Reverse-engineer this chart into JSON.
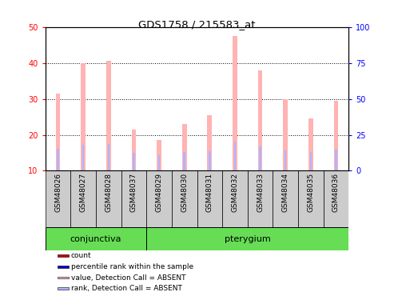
{
  "title": "GDS1758 / 215583_at",
  "samples": [
    "GSM48026",
    "GSM48027",
    "GSM48028",
    "GSM48037",
    "GSM48029",
    "GSM48030",
    "GSM48031",
    "GSM48032",
    "GSM48033",
    "GSM48034",
    "GSM48035",
    "GSM48036"
  ],
  "groups": [
    "conjunctiva",
    "conjunctiva",
    "conjunctiva",
    "conjunctiva",
    "pterygium",
    "pterygium",
    "pterygium",
    "pterygium",
    "pterygium",
    "pterygium",
    "pterygium",
    "pterygium"
  ],
  "value_absent": [
    31.5,
    40.0,
    40.5,
    21.5,
    18.5,
    23.0,
    25.5,
    47.5,
    38.0,
    30.0,
    24.5,
    29.5
  ],
  "rank_absent": [
    15.5,
    18.0,
    18.5,
    12.5,
    11.0,
    13.0,
    13.5,
    20.5,
    17.0,
    14.0,
    13.0,
    14.5
  ],
  "ylim_left": [
    10,
    50
  ],
  "ylim_right": [
    0,
    100
  ],
  "yticks_left": [
    10,
    20,
    30,
    40,
    50
  ],
  "yticks_right": [
    0,
    25,
    50,
    75,
    100
  ],
  "bar_color_absent": "#ffb3b3",
  "rank_color_absent": "#b3b3ff",
  "tissue_color": "#66dd55",
  "sample_bg_color": "#cccccc",
  "legend_items": [
    {
      "color": "#cc0000",
      "label": "count"
    },
    {
      "color": "#0000cc",
      "label": "percentile rank within the sample"
    },
    {
      "color": "#ffb3b3",
      "label": "value, Detection Call = ABSENT"
    },
    {
      "color": "#b3b3ff",
      "label": "rank, Detection Call = ABSENT"
    }
  ]
}
